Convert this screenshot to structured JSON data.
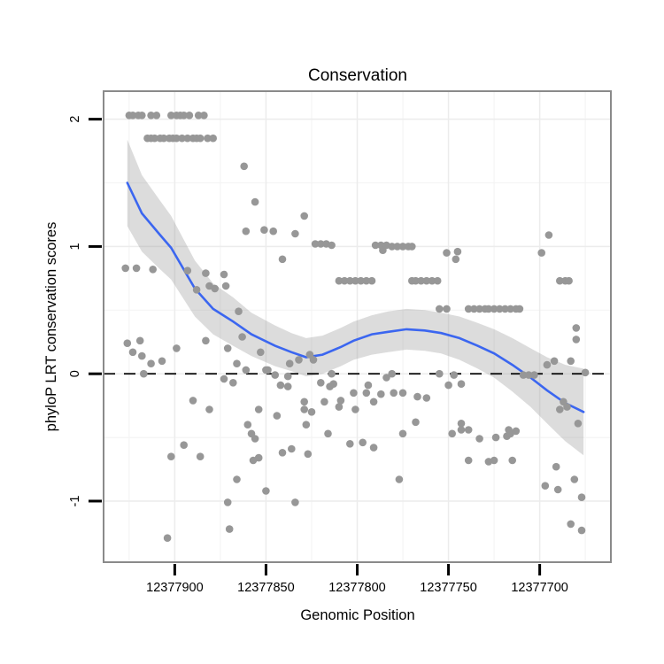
{
  "style": {
    "point_color": "#979797",
    "smooth_color": "#3B66F0",
    "ribbon_color": "rgba(150,150,150,0.33)",
    "grid_major": "#ECECEC",
    "grid_minor": "#F4F4F4",
    "panel_border": "#8A8A8A",
    "tick_color": "#000000",
    "zero_line_color": "#111111"
  },
  "chart_data": {
    "type": "scatter",
    "title": "Conservation",
    "xlabel": "Genomic Position",
    "ylabel": "phyloP LRT conservation scores",
    "x_reversed": true,
    "x_domain": [
      12377939,
      12377661
    ],
    "y_domain": [
      -1.48,
      2.22
    ],
    "x_ticks": [
      12377900,
      12377850,
      12377800,
      12377750,
      12377700
    ],
    "x_minor": [
      12377925,
      12377875,
      12377825,
      12377775,
      12377725,
      12377675
    ],
    "y_ticks": [
      -1,
      0,
      1,
      2
    ],
    "y_minor": [
      -0.5,
      0.5,
      1.5
    ],
    "hline_y": 0,
    "points": [
      [
        12377925,
        2.03
      ],
      [
        12377923,
        2.03
      ],
      [
        12377920,
        2.03
      ],
      [
        12377918,
        2.03
      ],
      [
        12377913,
        2.03
      ],
      [
        12377910,
        2.03
      ],
      [
        12377902,
        2.03
      ],
      [
        12377899,
        2.03
      ],
      [
        12377897,
        2.03
      ],
      [
        12377895,
        2.03
      ],
      [
        12377892,
        2.03
      ],
      [
        12377887,
        2.03
      ],
      [
        12377884,
        2.03
      ],
      [
        12377915,
        1.85
      ],
      [
        12377913,
        1.85
      ],
      [
        12377911,
        1.85
      ],
      [
        12377908,
        1.85
      ],
      [
        12377906,
        1.85
      ],
      [
        12377903,
        1.85
      ],
      [
        12377901,
        1.85
      ],
      [
        12377899,
        1.85
      ],
      [
        12377896,
        1.85
      ],
      [
        12377893,
        1.85
      ],
      [
        12377890,
        1.85
      ],
      [
        12377888,
        1.85
      ],
      [
        12377886,
        1.85
      ],
      [
        12377882,
        1.85
      ],
      [
        12377879,
        1.85
      ],
      [
        12377862,
        1.63
      ],
      [
        12377856,
        1.35
      ],
      [
        12377829,
        1.24
      ],
      [
        12377861,
        1.12
      ],
      [
        12377851,
        1.13
      ],
      [
        12377846,
        1.12
      ],
      [
        12377834,
        1.1
      ],
      [
        12377823,
        1.02
      ],
      [
        12377820,
        1.02
      ],
      [
        12377817,
        1.02
      ],
      [
        12377814,
        1.01
      ],
      [
        12377790,
        1.01
      ],
      [
        12377787,
        1.01
      ],
      [
        12377784,
        1.01
      ],
      [
        12377781,
        1.0
      ],
      [
        12377778,
        1.0
      ],
      [
        12377775,
        1.0
      ],
      [
        12377772,
        1.0
      ],
      [
        12377770,
        1.0
      ],
      [
        12377841,
        0.9
      ],
      [
        12377786,
        0.97
      ],
      [
        12377751,
        0.95
      ],
      [
        12377745,
        0.96
      ],
      [
        12377746,
        0.9
      ],
      [
        12377699,
        0.95
      ],
      [
        12377695,
        1.09
      ],
      [
        12377810,
        0.73
      ],
      [
        12377807,
        0.73
      ],
      [
        12377804,
        0.73
      ],
      [
        12377801,
        0.73
      ],
      [
        12377798,
        0.73
      ],
      [
        12377795,
        0.73
      ],
      [
        12377792,
        0.73
      ],
      [
        12377770,
        0.73
      ],
      [
        12377768,
        0.73
      ],
      [
        12377765,
        0.73
      ],
      [
        12377762,
        0.73
      ],
      [
        12377759,
        0.73
      ],
      [
        12377756,
        0.73
      ],
      [
        12377689,
        0.73
      ],
      [
        12377686,
        0.73
      ],
      [
        12377684,
        0.73
      ],
      [
        12377755,
        0.51
      ],
      [
        12377751,
        0.51
      ],
      [
        12377739,
        0.51
      ],
      [
        12377736,
        0.51
      ],
      [
        12377733,
        0.51
      ],
      [
        12377730,
        0.51
      ],
      [
        12377728,
        0.51
      ],
      [
        12377725,
        0.51
      ],
      [
        12377722,
        0.51
      ],
      [
        12377719,
        0.51
      ],
      [
        12377716,
        0.51
      ],
      [
        12377713,
        0.51
      ],
      [
        12377711,
        0.51
      ],
      [
        12377680,
        0.36
      ],
      [
        12377680,
        0.27
      ],
      [
        12377927,
        0.83
      ],
      [
        12377921,
        0.83
      ],
      [
        12377912,
        0.82
      ],
      [
        12377893,
        0.81
      ],
      [
        12377883,
        0.79
      ],
      [
        12377873,
        0.78
      ],
      [
        12377888,
        0.66
      ],
      [
        12377881,
        0.69
      ],
      [
        12377878,
        0.67
      ],
      [
        12377872,
        0.69
      ],
      [
        12377865,
        0.49
      ],
      [
        12377863,
        0.29
      ],
      [
        12377926,
        0.24
      ],
      [
        12377919,
        0.26
      ],
      [
        12377923,
        0.17
      ],
      [
        12377918,
        0.14
      ],
      [
        12377913,
        0.08
      ],
      [
        12377907,
        0.1
      ],
      [
        12377917,
        0.0
      ],
      [
        12377899,
        0.2
      ],
      [
        12377883,
        0.26
      ],
      [
        12377871,
        0.2
      ],
      [
        12377866,
        0.08
      ],
      [
        12377861,
        0.03
      ],
      [
        12377873,
        -0.04
      ],
      [
        12377868,
        -0.07
      ],
      [
        12377849,
        0.03
      ],
      [
        12377853,
        0.17
      ],
      [
        12377890,
        -0.21
      ],
      [
        12377837,
        0.08
      ],
      [
        12377832,
        0.11
      ],
      [
        12377826,
        0.15
      ],
      [
        12377824,
        0.11
      ],
      [
        12377850,
        0.03
      ],
      [
        12377845,
        -0.01
      ],
      [
        12377838,
        -0.02
      ],
      [
        12377842,
        -0.09
      ],
      [
        12377838,
        -0.1
      ],
      [
        12377820,
        -0.07
      ],
      [
        12377814,
        0.0
      ],
      [
        12377813,
        -0.08
      ],
      [
        12377815,
        -0.1
      ],
      [
        12377829,
        -0.22
      ],
      [
        12377818,
        -0.22
      ],
      [
        12377809,
        -0.21
      ],
      [
        12377802,
        -0.15
      ],
      [
        12377795,
        -0.15
      ],
      [
        12377794,
        -0.09
      ],
      [
        12377791,
        -0.22
      ],
      [
        12377787,
        -0.16
      ],
      [
        12377784,
        -0.03
      ],
      [
        12377781,
        0.0
      ],
      [
        12377780,
        -0.15
      ],
      [
        12377775,
        -0.15
      ],
      [
        12377767,
        -0.18
      ],
      [
        12377762,
        -0.19
      ],
      [
        12377755,
        0.0
      ],
      [
        12377747,
        -0.01
      ],
      [
        12377709,
        -0.01
      ],
      [
        12377706,
        -0.01
      ],
      [
        12377703,
        -0.01
      ],
      [
        12377675,
        0.01
      ],
      [
        12377750,
        -0.09
      ],
      [
        12377743,
        -0.08
      ],
      [
        12377696,
        0.07
      ],
      [
        12377692,
        0.1
      ],
      [
        12377683,
        0.1
      ],
      [
        12377687,
        -0.22
      ],
      [
        12377685,
        -0.26
      ],
      [
        12377881,
        -0.28
      ],
      [
        12377854,
        -0.28
      ],
      [
        12377860,
        -0.4
      ],
      [
        12377858,
        -0.47
      ],
      [
        12377856,
        -0.51
      ],
      [
        12377895,
        -0.56
      ],
      [
        12377902,
        -0.65
      ],
      [
        12377886,
        -0.65
      ],
      [
        12377857,
        -0.68
      ],
      [
        12377854,
        -0.66
      ],
      [
        12377866,
        -0.83
      ],
      [
        12377850,
        -0.92
      ],
      [
        12377871,
        -1.01
      ],
      [
        12377870,
        -1.22
      ],
      [
        12377904,
        -1.29
      ],
      [
        12377844,
        -0.33
      ],
      [
        12377825,
        -0.3
      ],
      [
        12377829,
        -0.28
      ],
      [
        12377810,
        -0.26
      ],
      [
        12377801,
        -0.28
      ],
      [
        12377828,
        -0.4
      ],
      [
        12377816,
        -0.47
      ],
      [
        12377775,
        -0.47
      ],
      [
        12377768,
        -0.38
      ],
      [
        12377804,
        -0.55
      ],
      [
        12377797,
        -0.54
      ],
      [
        12377791,
        -0.58
      ],
      [
        12377841,
        -0.62
      ],
      [
        12377836,
        -0.59
      ],
      [
        12377827,
        -0.63
      ],
      [
        12377777,
        -0.83
      ],
      [
        12377834,
        -1.01
      ],
      [
        12377743,
        -0.39
      ],
      [
        12377748,
        -0.47
      ],
      [
        12377743,
        -0.44
      ],
      [
        12377739,
        -0.44
      ],
      [
        12377733,
        -0.51
      ],
      [
        12377724,
        -0.5
      ],
      [
        12377718,
        -0.49
      ],
      [
        12377717,
        -0.44
      ],
      [
        12377716,
        -0.47
      ],
      [
        12377713,
        -0.45
      ],
      [
        12377739,
        -0.68
      ],
      [
        12377728,
        -0.69
      ],
      [
        12377725,
        -0.68
      ],
      [
        12377715,
        -0.68
      ],
      [
        12377691,
        -0.73
      ],
      [
        12377697,
        -0.88
      ],
      [
        12377690,
        -0.91
      ],
      [
        12377681,
        -0.83
      ],
      [
        12377677,
        -0.97
      ],
      [
        12377683,
        -1.18
      ],
      [
        12377677,
        -1.23
      ],
      [
        12377679,
        -0.39
      ],
      [
        12377689,
        -0.28
      ]
    ],
    "smooth": [
      [
        12377926,
        1.5,
        1.16,
        1.84
      ],
      [
        12377918,
        1.26,
        0.96,
        1.56
      ],
      [
        12377908,
        1.09,
        0.82,
        1.36
      ],
      [
        12377902,
        0.99,
        0.74,
        1.24
      ],
      [
        12377889,
        0.67,
        0.45,
        0.89
      ],
      [
        12377879,
        0.51,
        0.31,
        0.71
      ],
      [
        12377868,
        0.41,
        0.22,
        0.6
      ],
      [
        12377858,
        0.31,
        0.14,
        0.48
      ],
      [
        12377845,
        0.22,
        0.06,
        0.38
      ],
      [
        12377836,
        0.17,
        0.02,
        0.32
      ],
      [
        12377828,
        0.13,
        -0.02,
        0.28
      ],
      [
        12377819,
        0.15,
        0.0,
        0.3
      ],
      [
        12377809,
        0.21,
        0.06,
        0.36
      ],
      [
        12377802,
        0.26,
        0.11,
        0.41
      ],
      [
        12377792,
        0.31,
        0.15,
        0.46
      ],
      [
        12377783,
        0.33,
        0.17,
        0.49
      ],
      [
        12377773,
        0.35,
        0.19,
        0.51
      ],
      [
        12377763,
        0.34,
        0.18,
        0.5
      ],
      [
        12377754,
        0.32,
        0.16,
        0.48
      ],
      [
        12377744,
        0.28,
        0.11,
        0.45
      ],
      [
        12377734,
        0.22,
        0.04,
        0.4
      ],
      [
        12377725,
        0.16,
        -0.03,
        0.35
      ],
      [
        12377715,
        0.07,
        -0.14,
        0.28
      ],
      [
        12377705,
        -0.03,
        -0.26,
        0.2
      ],
      [
        12377696,
        -0.13,
        -0.39,
        0.13
      ],
      [
        12377686,
        -0.23,
        -0.53,
        0.07
      ],
      [
        12377676,
        -0.3,
        -0.64,
        0.04
      ]
    ]
  }
}
